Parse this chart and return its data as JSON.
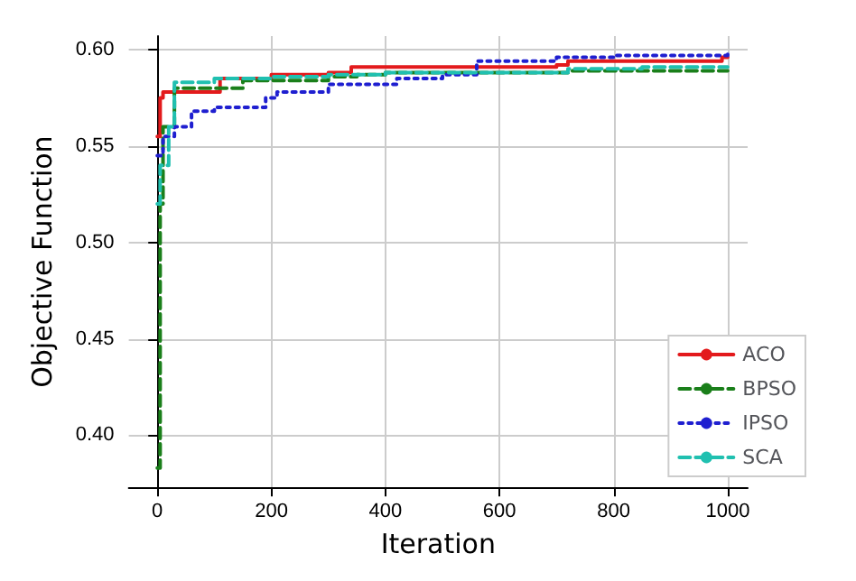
{
  "chart_data": {
    "type": "step",
    "xlabel": "Iteration",
    "ylabel": "Objective Function",
    "xlim": [
      -50,
      1035
    ],
    "ylim": [
      0.373,
      0.607
    ],
    "xticks": [
      0,
      200,
      400,
      600,
      800,
      1000
    ],
    "yticks": [
      {
        "value": 0.4,
        "label": "0.40"
      },
      0.45,
      {
        "value": 0.5,
        "label": "0.50"
      },
      0.55,
      {
        "value": 0.6,
        "label": "0.60"
      }
    ],
    "grid": true,
    "legend": "bottom right",
    "series": [
      {
        "name": "ACO",
        "color": "#e31a1c",
        "line_style": "solid",
        "x": [
          0,
          5,
          10,
          110,
          200,
          300,
          340,
          700,
          720,
          990,
          1000
        ],
        "values": [
          0.555,
          0.575,
          0.578,
          0.585,
          0.587,
          0.588,
          0.591,
          0.592,
          0.594,
          0.596,
          0.596
        ]
      },
      {
        "name": "BPSO",
        "color": "#1a7f1a",
        "line_style": "dashed",
        "x": [
          0,
          5,
          10,
          30,
          150,
          300,
          350,
          400,
          720,
          1000
        ],
        "values": [
          0.383,
          0.52,
          0.56,
          0.58,
          0.584,
          0.586,
          0.587,
          0.588,
          0.589,
          0.589
        ]
      },
      {
        "name": "IPSO",
        "color": "#1f1fd0",
        "line_style": "dotted",
        "x": [
          0,
          10,
          30,
          60,
          100,
          190,
          210,
          300,
          420,
          500,
          560,
          700,
          800,
          1000
        ],
        "values": [
          0.545,
          0.555,
          0.56,
          0.568,
          0.57,
          0.575,
          0.578,
          0.582,
          0.585,
          0.587,
          0.594,
          0.596,
          0.597,
          0.598
        ]
      },
      {
        "name": "SCA",
        "color": "#20c0b0",
        "line_style": "dashed",
        "x": [
          0,
          5,
          20,
          30,
          100,
          200,
          300,
          400,
          720,
          850,
          1000
        ],
        "values": [
          0.52,
          0.54,
          0.56,
          0.583,
          0.585,
          0.586,
          0.587,
          0.588,
          0.59,
          0.591,
          0.591
        ]
      }
    ]
  }
}
